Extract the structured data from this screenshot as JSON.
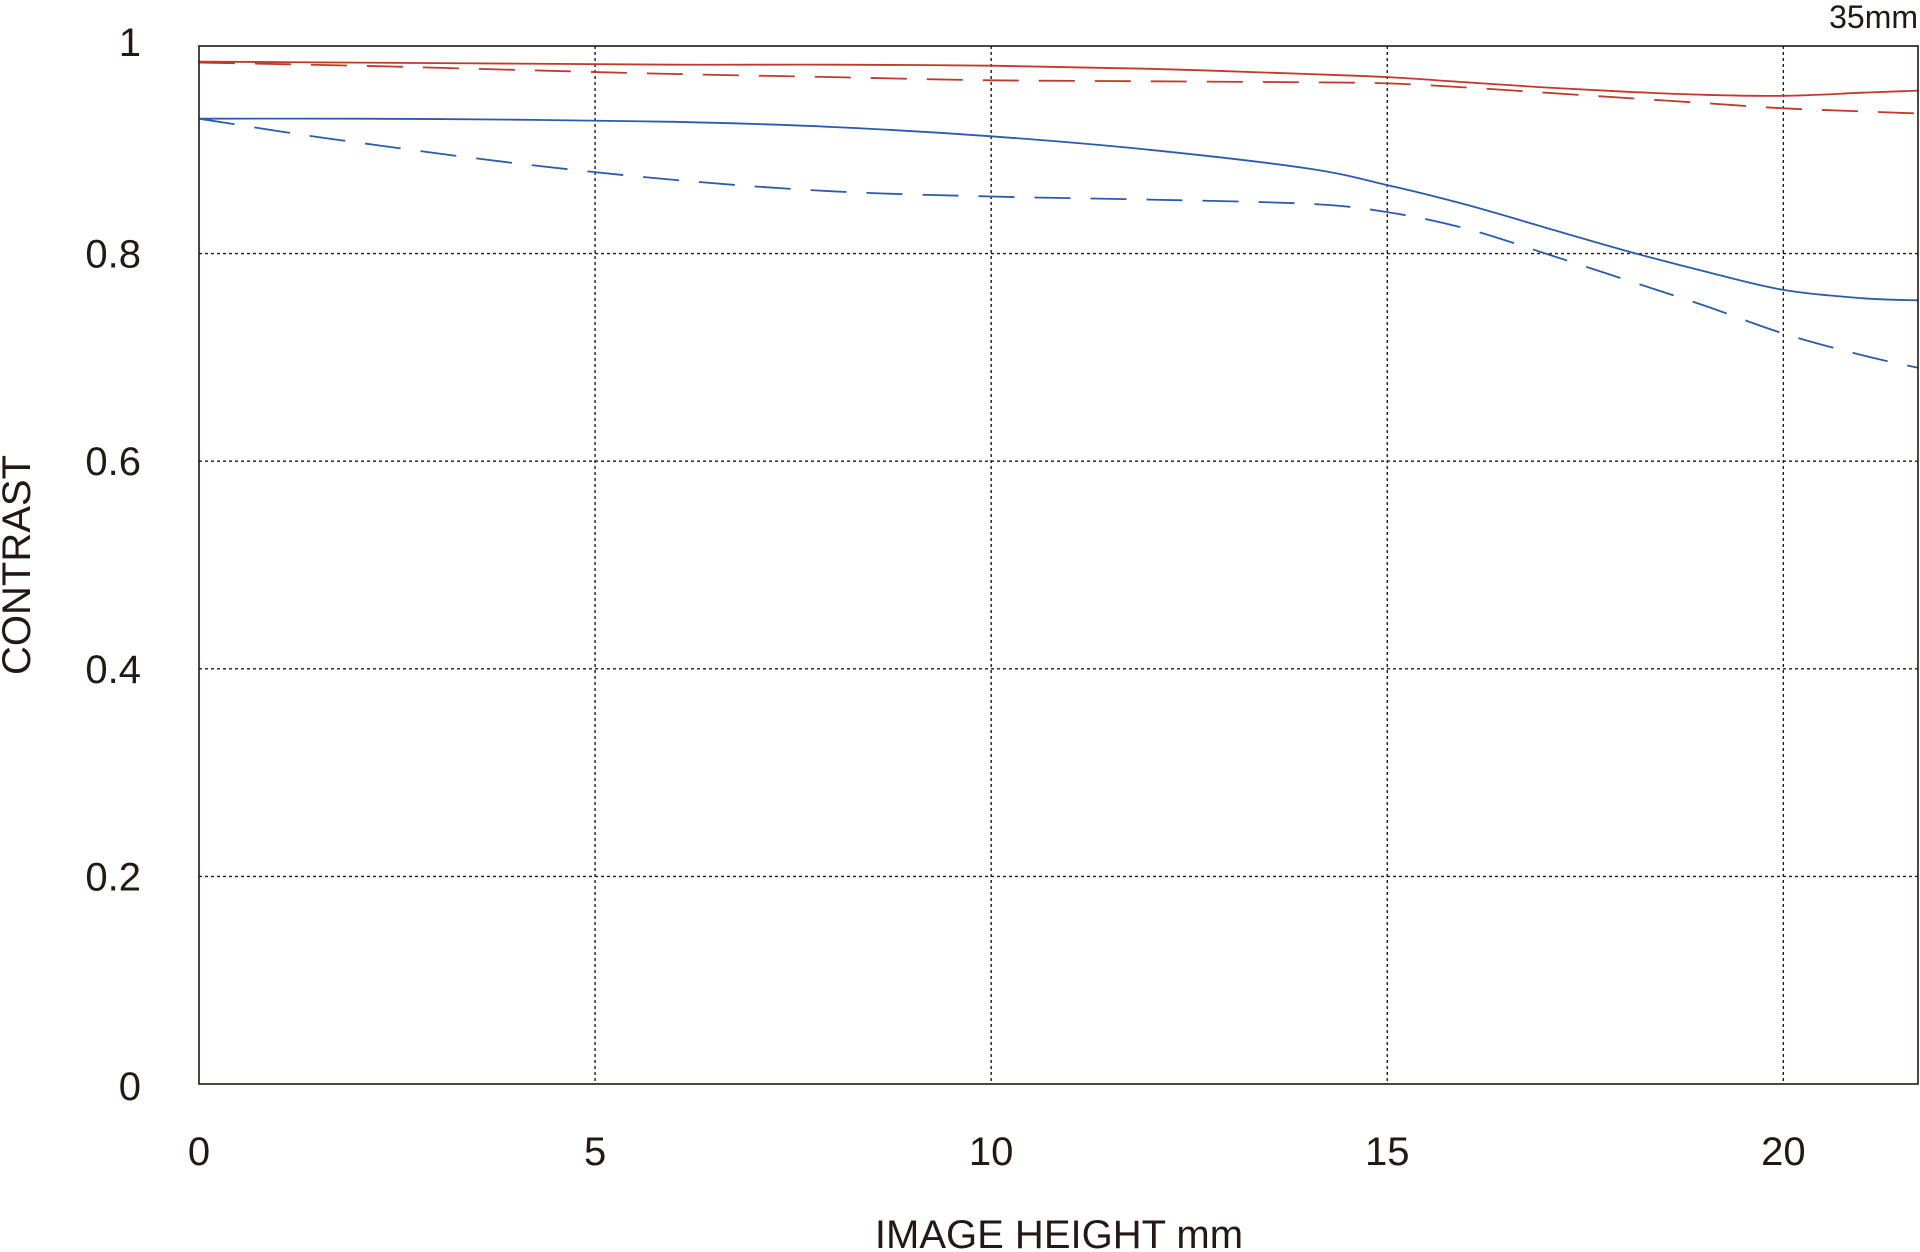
{
  "chart_data": {
    "type": "line",
    "title": "",
    "corner_label": "35mm",
    "xlabel": "IMAGE HEIGHT  mm",
    "ylabel": "CONTRAST",
    "xlim": [
      0,
      21.7
    ],
    "ylim": [
      0,
      1
    ],
    "x_ticks": [
      0,
      5,
      10,
      15,
      20
    ],
    "x_tick_labels": [
      "0",
      "5",
      "10",
      "15",
      "20"
    ],
    "y_ticks": [
      0,
      0.2,
      0.4,
      0.6,
      0.8,
      1
    ],
    "y_tick_labels": [
      "0",
      "0.2",
      "0.4",
      "0.6",
      "0.8",
      "1"
    ],
    "grid": true,
    "legend": "none",
    "series": [
      {
        "color": "#c0392b",
        "style": "solid",
        "points": [
          [
            0,
            0.985
          ],
          [
            2,
            0.984
          ],
          [
            4,
            0.983
          ],
          [
            6,
            0.982
          ],
          [
            8,
            0.982
          ],
          [
            10,
            0.981
          ],
          [
            12,
            0.978
          ],
          [
            14,
            0.973
          ],
          [
            15,
            0.97
          ],
          [
            16,
            0.965
          ],
          [
            17,
            0.96
          ],
          [
            18,
            0.956
          ],
          [
            19,
            0.953
          ],
          [
            20,
            0.952
          ],
          [
            21,
            0.955
          ],
          [
            21.7,
            0.957
          ]
        ]
      },
      {
        "color": "#c0392b",
        "style": "dashed",
        "points": [
          [
            0,
            0.984
          ],
          [
            2,
            0.981
          ],
          [
            4,
            0.977
          ],
          [
            6,
            0.973
          ],
          [
            8,
            0.97
          ],
          [
            10,
            0.967
          ],
          [
            12,
            0.966
          ],
          [
            14,
            0.965
          ],
          [
            15,
            0.964
          ],
          [
            16,
            0.96
          ],
          [
            17,
            0.955
          ],
          [
            18,
            0.95
          ],
          [
            19,
            0.945
          ],
          [
            20,
            0.94
          ],
          [
            21,
            0.937
          ],
          [
            21.7,
            0.935
          ]
        ]
      },
      {
        "color": "#2a5caa",
        "style": "solid",
        "points": [
          [
            0,
            0.93
          ],
          [
            2,
            0.93
          ],
          [
            4,
            0.929
          ],
          [
            6,
            0.927
          ],
          [
            8,
            0.922
          ],
          [
            10,
            0.913
          ],
          [
            12,
            0.9
          ],
          [
            14,
            0.882
          ],
          [
            15,
            0.866
          ],
          [
            16,
            0.847
          ],
          [
            17,
            0.825
          ],
          [
            18,
            0.803
          ],
          [
            19,
            0.783
          ],
          [
            20,
            0.765
          ],
          [
            21,
            0.757
          ],
          [
            21.7,
            0.755
          ]
        ]
      },
      {
        "color": "#2a5caa",
        "style": "dashed",
        "points": [
          [
            0,
            0.93
          ],
          [
            1,
            0.918
          ],
          [
            2,
            0.907
          ],
          [
            4,
            0.887
          ],
          [
            6,
            0.871
          ],
          [
            8,
            0.86
          ],
          [
            10,
            0.855
          ],
          [
            12,
            0.852
          ],
          [
            14,
            0.848
          ],
          [
            15,
            0.84
          ],
          [
            16,
            0.824
          ],
          [
            17,
            0.8
          ],
          [
            18,
            0.775
          ],
          [
            19,
            0.75
          ],
          [
            20,
            0.723
          ],
          [
            21,
            0.702
          ],
          [
            21.7,
            0.69
          ]
        ]
      }
    ]
  }
}
